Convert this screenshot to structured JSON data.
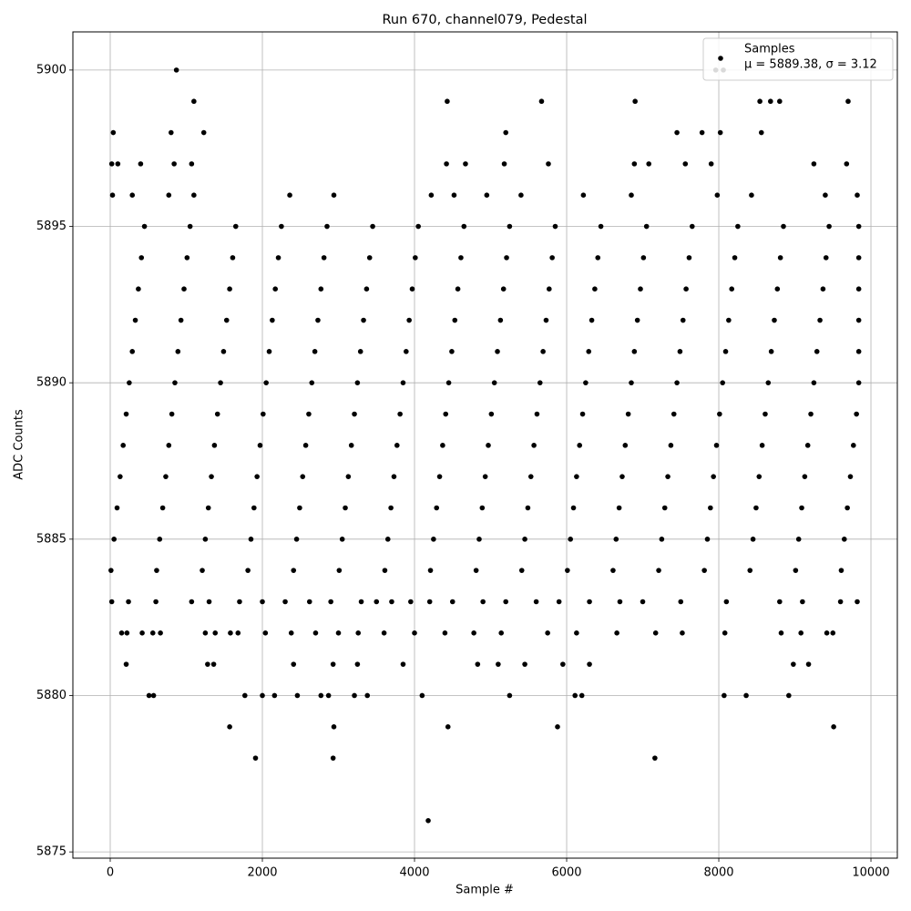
{
  "chart_data": {
    "type": "scatter",
    "title": "Run 670, channel079, Pedestal",
    "x_label": "Sample #",
    "y_label": "ADC Counts",
    "xlim": [
      -491,
      10347
    ],
    "ylim": [
      5874.8,
      5901.22
    ],
    "xticks": [
      0,
      2000,
      4000,
      6000,
      8000,
      10000
    ],
    "yticks": [
      5875,
      5880,
      5885,
      5890,
      5895,
      5900
    ],
    "grid": true,
    "legend": "upper right",
    "legend_note": "μ = 5889.38, σ = 3.12",
    "series": [
      {
        "name": "Samples",
        "color": "#000000",
        "x": [
          870,
          1100,
          4430,
          5670,
          6900,
          9700,
          8540,
          8680,
          8800,
          7960,
          8060,
          40,
          800,
          1230,
          5200,
          7450,
          7780,
          8020,
          8560,
          20,
          100,
          400,
          840,
          1070,
          4420,
          4670,
          5180,
          5760,
          6890,
          7080,
          7560,
          7900,
          9250,
          9680,
          30,
          290,
          770,
          1100,
          2360,
          2940,
          4220,
          4520,
          4950,
          5400,
          6220,
          6850,
          7980,
          8430,
          9400,
          9820,
          210,
          1280,
          1360,
          2410,
          2930,
          3250,
          3850,
          4830,
          5100,
          5450,
          5950,
          6300,
          8980,
          9180,
          510,
          570,
          1770,
          2000,
          2160,
          2460,
          2770,
          2870,
          3210,
          3380,
          4100,
          5250,
          6110,
          6200,
          8070,
          8360,
          8920,
          1570,
          2940,
          4440,
          5880,
          9510,
          1910,
          2930,
          7160,
          4180,
          150,
          220,
          420,
          560,
          660,
          1250,
          1380,
          1580,
          1680,
          2040,
          2380,
          2700,
          3000,
          3260,
          3600,
          4000,
          4400,
          4780,
          5140,
          5750,
          6130,
          6660,
          7170,
          7520,
          8080,
          8820,
          9080,
          9420,
          9500,
          20,
          240,
          600,
          1070,
          1300,
          1700,
          2000,
          2300,
          2620,
          2900,
          3300,
          3500,
          3700,
          3950,
          4200,
          4500,
          4900,
          5200,
          5600,
          5900,
          6300,
          6700,
          7000,
          7500,
          8100,
          8800,
          9100,
          9600,
          9820,
          10,
          610,
          1210,
          1810,
          2410,
          3010,
          3610,
          4210,
          4810,
          5410,
          6010,
          6610,
          7210,
          7810,
          8410,
          9010,
          9610,
          50,
          650,
          1250,
          1850,
          2450,
          3050,
          3650,
          4250,
          4850,
          5450,
          6050,
          6650,
          7250,
          7850,
          8450,
          9050,
          9650,
          90,
          690,
          1290,
          1890,
          2490,
          3090,
          3690,
          4290,
          4890,
          5490,
          6090,
          6690,
          7290,
          7890,
          8490,
          9090,
          9690,
          130,
          730,
          1330,
          1930,
          2530,
          3130,
          3730,
          4330,
          4930,
          5530,
          6130,
          6730,
          7330,
          7930,
          8530,
          9130,
          9730,
          170,
          770,
          1370,
          1970,
          2570,
          3170,
          3770,
          4370,
          4970,
          5570,
          6170,
          6770,
          7370,
          7970,
          8570,
          9170,
          9770,
          210,
          810,
          1410,
          2010,
          2610,
          3210,
          3810,
          4410,
          5010,
          5610,
          6210,
          6810,
          7410,
          8010,
          8610,
          9210,
          9810,
          250,
          850,
          1450,
          2050,
          2650,
          3250,
          3850,
          4450,
          5050,
          5650,
          6250,
          6850,
          7450,
          8050,
          8650,
          9250,
          9840,
          290,
          890,
          1490,
          2090,
          2690,
          3290,
          3890,
          4490,
          5090,
          5690,
          6290,
          6890,
          7490,
          8090,
          8690,
          9290,
          9840,
          330,
          930,
          1530,
          2130,
          2730,
          3330,
          3930,
          4530,
          5130,
          5730,
          6330,
          6930,
          7530,
          8130,
          8730,
          9330,
          9840,
          370,
          970,
          1570,
          2170,
          2770,
          3370,
          3970,
          4570,
          5170,
          5770,
          6370,
          6970,
          7570,
          8170,
          8770,
          9370,
          9840,
          410,
          1010,
          1610,
          2210,
          2810,
          3410,
          4010,
          4610,
          5210,
          5810,
          6410,
          7010,
          7610,
          8210,
          8810,
          9410,
          9840,
          450,
          1050,
          1650,
          2250,
          2850,
          3450,
          4050,
          4650,
          5250,
          5850,
          6450,
          7050,
          7650,
          8250,
          8850,
          9450,
          9840
        ],
        "values": [
          5900,
          5899,
          5899,
          5899,
          5899,
          5899,
          5899,
          5899,
          5899,
          5900,
          5900,
          5898,
          5898,
          5898,
          5898,
          5898,
          5898,
          5898,
          5898,
          5897,
          5897,
          5897,
          5897,
          5897,
          5897,
          5897,
          5897,
          5897,
          5897,
          5897,
          5897,
          5897,
          5897,
          5897,
          5896,
          5896,
          5896,
          5896,
          5896,
          5896,
          5896,
          5896,
          5896,
          5896,
          5896,
          5896,
          5896,
          5896,
          5896,
          5896,
          5881,
          5881,
          5881,
          5881,
          5881,
          5881,
          5881,
          5881,
          5881,
          5881,
          5881,
          5881,
          5881,
          5881,
          5880,
          5880,
          5880,
          5880,
          5880,
          5880,
          5880,
          5880,
          5880,
          5880,
          5880,
          5880,
          5880,
          5880,
          5880,
          5880,
          5880,
          5879,
          5879,
          5879,
          5879,
          5879,
          5878,
          5878,
          5878,
          5876,
          5882,
          5882,
          5882,
          5882,
          5882,
          5882,
          5882,
          5882,
          5882,
          5882,
          5882,
          5882,
          5882,
          5882,
          5882,
          5882,
          5882,
          5882,
          5882,
          5882,
          5882,
          5882,
          5882,
          5882,
          5882,
          5882,
          5882,
          5882,
          5882,
          5883,
          5883,
          5883,
          5883,
          5883,
          5883,
          5883,
          5883,
          5883,
          5883,
          5883,
          5883,
          5883,
          5883,
          5883,
          5883,
          5883,
          5883,
          5883,
          5883,
          5883,
          5883,
          5883,
          5883,
          5883,
          5883,
          5883,
          5883,
          5883,
          5884,
          5884,
          5884,
          5884,
          5884,
          5884,
          5884,
          5884,
          5884,
          5884,
          5884,
          5884,
          5884,
          5884,
          5884,
          5884,
          5884,
          5885,
          5885,
          5885,
          5885,
          5885,
          5885,
          5885,
          5885,
          5885,
          5885,
          5885,
          5885,
          5885,
          5885,
          5885,
          5885,
          5885,
          5886,
          5886,
          5886,
          5886,
          5886,
          5886,
          5886,
          5886,
          5886,
          5886,
          5886,
          5886,
          5886,
          5886,
          5886,
          5886,
          5886,
          5887,
          5887,
          5887,
          5887,
          5887,
          5887,
          5887,
          5887,
          5887,
          5887,
          5887,
          5887,
          5887,
          5887,
          5887,
          5887,
          5887,
          5888,
          5888,
          5888,
          5888,
          5888,
          5888,
          5888,
          5888,
          5888,
          5888,
          5888,
          5888,
          5888,
          5888,
          5888,
          5888,
          5888,
          5889,
          5889,
          5889,
          5889,
          5889,
          5889,
          5889,
          5889,
          5889,
          5889,
          5889,
          5889,
          5889,
          5889,
          5889,
          5889,
          5889,
          5890,
          5890,
          5890,
          5890,
          5890,
          5890,
          5890,
          5890,
          5890,
          5890,
          5890,
          5890,
          5890,
          5890,
          5890,
          5890,
          5890,
          5891,
          5891,
          5891,
          5891,
          5891,
          5891,
          5891,
          5891,
          5891,
          5891,
          5891,
          5891,
          5891,
          5891,
          5891,
          5891,
          5891,
          5892,
          5892,
          5892,
          5892,
          5892,
          5892,
          5892,
          5892,
          5892,
          5892,
          5892,
          5892,
          5892,
          5892,
          5892,
          5892,
          5892,
          5893,
          5893,
          5893,
          5893,
          5893,
          5893,
          5893,
          5893,
          5893,
          5893,
          5893,
          5893,
          5893,
          5893,
          5893,
          5893,
          5893,
          5894,
          5894,
          5894,
          5894,
          5894,
          5894,
          5894,
          5894,
          5894,
          5894,
          5894,
          5894,
          5894,
          5894,
          5894,
          5894,
          5894,
          5895,
          5895,
          5895,
          5895,
          5895,
          5895,
          5895,
          5895,
          5895,
          5895,
          5895,
          5895,
          5895,
          5895,
          5895,
          5895,
          5895
        ]
      }
    ]
  }
}
